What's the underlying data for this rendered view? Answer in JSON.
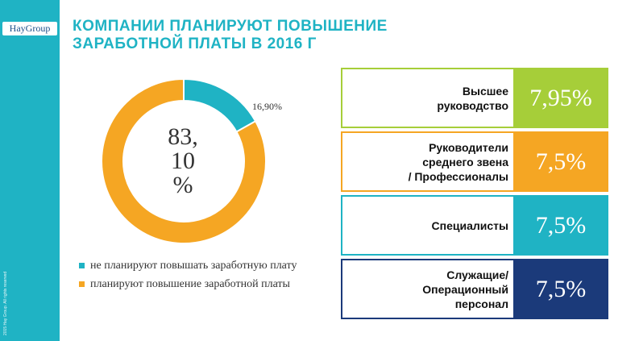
{
  "brand": {
    "logo_text": "HayGroup",
    "copyright": "2015 Hay Group. All rights reserved"
  },
  "title": {
    "line1": "КОМПАНИИ ПЛАНИРУЮТ ПОВЫШЕНИЕ",
    "line2": "ЗАРАБОТНОЙ ПЛАТЫ В 2016 Г"
  },
  "chart_data": {
    "type": "pie",
    "donut": true,
    "series": [
      {
        "name": "не планируют повышать заработную плату",
        "value": 16.9,
        "label": "16,90%",
        "color": "#1fb3c4"
      },
      {
        "name": "планируют повышение заработной платы",
        "value": 83.1,
        "label_lines": [
          "83,",
          "10",
          "%"
        ],
        "color": "#f5a623"
      }
    ],
    "legend_position": "bottom"
  },
  "table": {
    "rows": [
      {
        "label_lines": [
          "Высшее",
          "руководство"
        ],
        "value": "7,95%",
        "color": "#a6ce39"
      },
      {
        "label_lines": [
          "Руководители",
          "среднего звена",
          "/ Профессионалы"
        ],
        "value": "7,5%",
        "color": "#f5a623"
      },
      {
        "label_lines": [
          "Специалисты"
        ],
        "value": "7,5%",
        "color": "#1fb3c4"
      },
      {
        "label_lines": [
          "Служащие/",
          "Операционный",
          "персонал"
        ],
        "value": "7,5%",
        "color": "#1b3a7a"
      }
    ]
  }
}
